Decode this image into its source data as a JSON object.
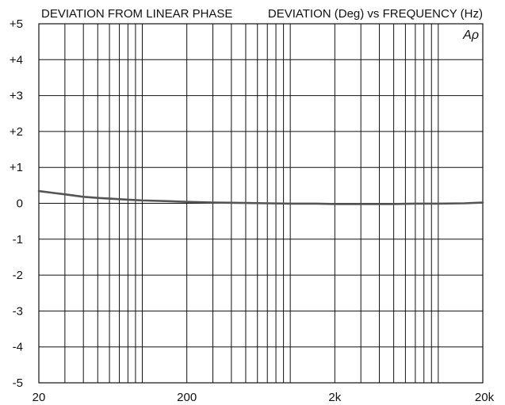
{
  "chart_data": {
    "type": "line",
    "title_left": "DEVIATION FROM LINEAR PHASE",
    "title_right": "DEVIATION (Deg) vs FREQUENCY (Hz)",
    "watermark": "Aρ",
    "x_scale": "log",
    "xlim": [
      20,
      20000
    ],
    "ylim": [
      -5,
      5
    ],
    "grid": true,
    "x_ticks": [
      {
        "value": 20,
        "label": "20"
      },
      {
        "value": 200,
        "label": "200"
      },
      {
        "value": 2000,
        "label": "2k"
      },
      {
        "value": 20000,
        "label": "20k"
      }
    ],
    "y_ticks": [
      {
        "value": 5,
        "label": "+5"
      },
      {
        "value": 4,
        "label": "+4"
      },
      {
        "value": 3,
        "label": "+3"
      },
      {
        "value": 2,
        "label": "+2"
      },
      {
        "value": 1,
        "label": "+1"
      },
      {
        "value": 0,
        "label": "0"
      },
      {
        "value": -1,
        "label": "-1"
      },
      {
        "value": -2,
        "label": "-2"
      },
      {
        "value": -3,
        "label": "-3"
      },
      {
        "value": -4,
        "label": "-4"
      },
      {
        "value": -5,
        "label": "-5"
      }
    ],
    "series": [
      {
        "color": "#555555",
        "x": [
          20,
          25,
          30,
          40,
          50,
          60,
          80,
          100,
          150,
          200,
          300,
          500,
          700,
          1000,
          1500,
          2000,
          3000,
          5000,
          7000,
          10000,
          15000,
          20000
        ],
        "y": [
          0.34,
          0.29,
          0.25,
          0.18,
          0.15,
          0.13,
          0.1,
          0.08,
          0.06,
          0.04,
          0.02,
          0.01,
          0.0,
          -0.01,
          -0.01,
          -0.02,
          -0.02,
          -0.02,
          -0.01,
          -0.01,
          0.0,
          0.02
        ]
      }
    ]
  }
}
